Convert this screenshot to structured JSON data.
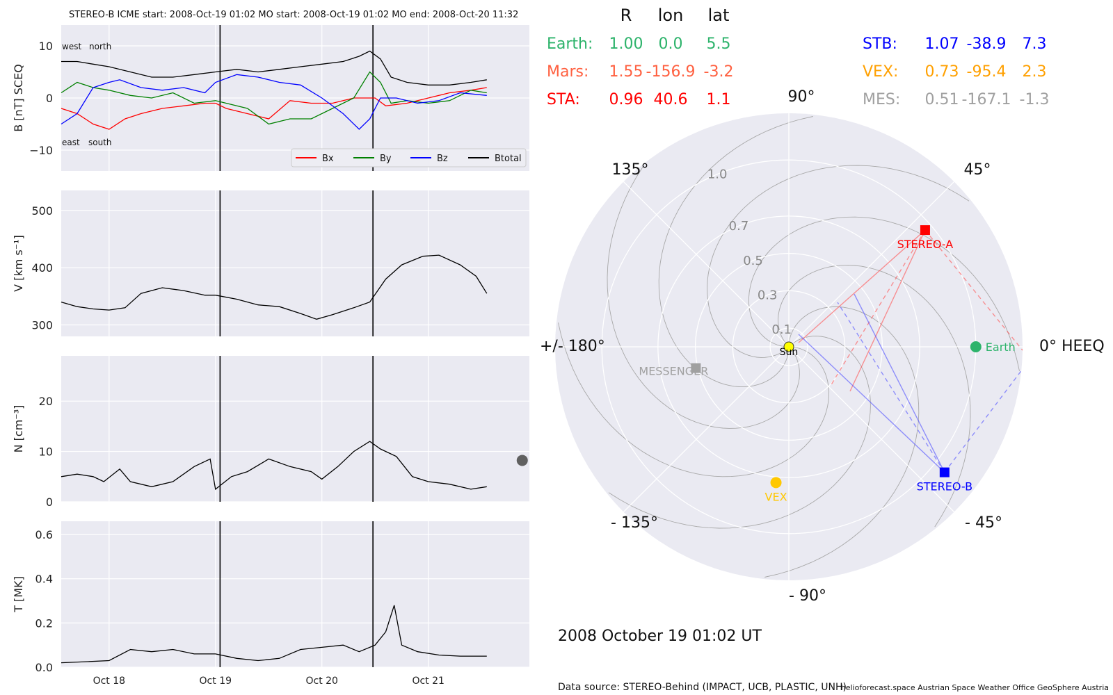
{
  "chart_data": [
    {
      "type": "line",
      "panel": "magnetic_field",
      "title": "STEREO-B    ICME start: 2008-Oct-19 01:02   MO start: 2008-Oct-19 01:02   MO end: 2008-Oct-20 11:32",
      "ylabel": "B [nT] SCEQ",
      "ylim": [
        -14,
        14
      ],
      "yticks": [
        {
          "v": -10,
          "label": "−10"
        },
        {
          "v": 0,
          "label": "0"
        },
        {
          "v": 10,
          "label": "10"
        }
      ],
      "annotations": [
        "west",
        "north",
        "east",
        "south"
      ],
      "series": [
        {
          "name": "Bx",
          "color": "#ff0000",
          "values": [
            [
              17.55,
              -2
            ],
            [
              17.7,
              -3
            ],
            [
              17.85,
              -5
            ],
            [
              18.0,
              -6
            ],
            [
              18.15,
              -4
            ],
            [
              18.3,
              -3
            ],
            [
              18.5,
              -2
            ],
            [
              18.7,
              -1.5
            ],
            [
              18.9,
              -1
            ],
            [
              19.0,
              -1
            ],
            [
              19.1,
              -2
            ],
            [
              19.3,
              -3
            ],
            [
              19.5,
              -4
            ],
            [
              19.7,
              -0.5
            ],
            [
              19.9,
              -1
            ],
            [
              20.1,
              -1
            ],
            [
              20.3,
              0
            ],
            [
              20.5,
              0
            ],
            [
              20.6,
              -1.5
            ],
            [
              20.8,
              -1
            ],
            [
              21.0,
              0
            ],
            [
              21.2,
              1
            ],
            [
              21.4,
              1.5
            ],
            [
              21.55,
              2
            ]
          ]
        },
        {
          "name": "By",
          "color": "#008000",
          "values": [
            [
              17.55,
              1
            ],
            [
              17.7,
              3
            ],
            [
              17.85,
              2
            ],
            [
              18.0,
              1.5
            ],
            [
              18.2,
              0.5
            ],
            [
              18.4,
              0
            ],
            [
              18.6,
              1
            ],
            [
              18.8,
              -1
            ],
            [
              19.0,
              -0.5
            ],
            [
              19.1,
              -1
            ],
            [
              19.3,
              -2
            ],
            [
              19.5,
              -5
            ],
            [
              19.7,
              -4
            ],
            [
              19.9,
              -4
            ],
            [
              20.1,
              -2
            ],
            [
              20.3,
              0
            ],
            [
              20.45,
              5
            ],
            [
              20.55,
              3
            ],
            [
              20.65,
              -1
            ],
            [
              20.8,
              -0.5
            ],
            [
              21.0,
              -1
            ],
            [
              21.2,
              -0.5
            ],
            [
              21.4,
              1.5
            ],
            [
              21.55,
              1
            ]
          ]
        },
        {
          "name": "Bz",
          "color": "#0000ff",
          "values": [
            [
              17.55,
              -5
            ],
            [
              17.7,
              -3
            ],
            [
              17.85,
              2
            ],
            [
              18.0,
              3
            ],
            [
              18.1,
              3.5
            ],
            [
              18.3,
              2
            ],
            [
              18.5,
              1.5
            ],
            [
              18.7,
              2
            ],
            [
              18.9,
              1
            ],
            [
              19.0,
              3
            ],
            [
              19.2,
              4.5
            ],
            [
              19.4,
              4
            ],
            [
              19.6,
              3
            ],
            [
              19.8,
              2.5
            ],
            [
              20.0,
              0
            ],
            [
              20.2,
              -3
            ],
            [
              20.35,
              -6
            ],
            [
              20.45,
              -4
            ],
            [
              20.55,
              0
            ],
            [
              20.7,
              0
            ],
            [
              20.9,
              -1
            ],
            [
              21.1,
              -0.5
            ],
            [
              21.3,
              1
            ],
            [
              21.55,
              0.5
            ]
          ]
        },
        {
          "name": "Btotal",
          "color": "#000000",
          "values": [
            [
              17.55,
              7
            ],
            [
              17.7,
              7
            ],
            [
              17.85,
              6.5
            ],
            [
              18.0,
              6
            ],
            [
              18.2,
              5
            ],
            [
              18.4,
              4
            ],
            [
              18.6,
              4
            ],
            [
              18.8,
              4.5
            ],
            [
              19.0,
              5
            ],
            [
              19.2,
              5.5
            ],
            [
              19.4,
              5
            ],
            [
              19.6,
              5.5
            ],
            [
              19.8,
              6
            ],
            [
              20.0,
              6.5
            ],
            [
              20.2,
              7
            ],
            [
              20.35,
              8
            ],
            [
              20.45,
              9
            ],
            [
              20.55,
              7.5
            ],
            [
              20.65,
              4
            ],
            [
              20.8,
              3
            ],
            [
              21.0,
              2.5
            ],
            [
              21.2,
              2.5
            ],
            [
              21.4,
              3
            ],
            [
              21.55,
              3.5
            ]
          ]
        }
      ]
    },
    {
      "type": "line",
      "panel": "speed",
      "ylabel": "V [km s⁻¹]",
      "ylim": [
        280,
        535
      ],
      "yticks": [
        {
          "v": 300,
          "label": "300"
        },
        {
          "v": 400,
          "label": "400"
        },
        {
          "v": 500,
          "label": "500"
        }
      ],
      "series": [
        {
          "name": "",
          "color": "#000000",
          "values": [
            [
              17.55,
              340
            ],
            [
              17.7,
              332
            ],
            [
              17.85,
              328
            ],
            [
              18.0,
              326
            ],
            [
              18.15,
              330
            ],
            [
              18.3,
              355
            ],
            [
              18.5,
              365
            ],
            [
              18.7,
              360
            ],
            [
              18.9,
              352
            ],
            [
              19.0,
              352
            ],
            [
              19.2,
              345
            ],
            [
              19.4,
              335
            ],
            [
              19.6,
              332
            ],
            [
              19.8,
              320
            ],
            [
              19.95,
              310
            ],
            [
              20.1,
              318
            ],
            [
              20.3,
              330
            ],
            [
              20.45,
              340
            ],
            [
              20.6,
              380
            ],
            [
              20.75,
              405
            ],
            [
              20.95,
              420
            ],
            [
              21.1,
              422
            ],
            [
              21.3,
              405
            ],
            [
              21.45,
              385
            ],
            [
              21.55,
              355
            ]
          ]
        }
      ]
    },
    {
      "type": "line",
      "panel": "density",
      "ylabel": "N [cm⁻³]",
      "ylim": [
        0,
        29
      ],
      "yticks": [
        {
          "v": 0,
          "label": "0"
        },
        {
          "v": 10,
          "label": "10"
        },
        {
          "v": 20,
          "label": "20"
        }
      ],
      "series": [
        {
          "name": "",
          "color": "#000000",
          "values": [
            [
              17.55,
              5
            ],
            [
              17.7,
              5.5
            ],
            [
              17.85,
              5
            ],
            [
              17.95,
              4
            ],
            [
              18.1,
              6.5
            ],
            [
              18.2,
              4
            ],
            [
              18.4,
              3
            ],
            [
              18.6,
              4
            ],
            [
              18.8,
              7
            ],
            [
              18.95,
              8.5
            ],
            [
              19.0,
              2.5
            ],
            [
              19.15,
              5
            ],
            [
              19.3,
              6
            ],
            [
              19.5,
              8.5
            ],
            [
              19.7,
              7
            ],
            [
              19.9,
              6
            ],
            [
              20.0,
              4.5
            ],
            [
              20.15,
              7
            ],
            [
              20.3,
              10
            ],
            [
              20.45,
              12
            ],
            [
              20.55,
              10.5
            ],
            [
              20.7,
              9
            ],
            [
              20.85,
              5
            ],
            [
              21.0,
              4
            ],
            [
              21.2,
              3.5
            ],
            [
              21.4,
              2.5
            ],
            [
              21.55,
              3
            ]
          ]
        }
      ]
    },
    {
      "type": "line",
      "panel": "temperature",
      "ylabel": "T [MK]",
      "ylim": [
        0,
        0.66
      ],
      "yticks": [
        {
          "v": 0,
          "label": "0.0"
        },
        {
          "v": 0.2,
          "label": "0.2"
        },
        {
          "v": 0.4,
          "label": "0.4"
        },
        {
          "v": 0.6,
          "label": "0.6"
        }
      ],
      "x_tick_labels": [
        "Oct 18",
        "Oct 19",
        "Oct 20",
        "Oct 21"
      ],
      "series": [
        {
          "name": "",
          "color": "#000000",
          "values": [
            [
              17.55,
              0.02
            ],
            [
              17.8,
              0.025
            ],
            [
              18.0,
              0.03
            ],
            [
              18.2,
              0.08
            ],
            [
              18.4,
              0.07
            ],
            [
              18.6,
              0.08
            ],
            [
              18.8,
              0.06
            ],
            [
              19.0,
              0.06
            ],
            [
              19.2,
              0.04
            ],
            [
              19.4,
              0.03
            ],
            [
              19.6,
              0.04
            ],
            [
              19.8,
              0.08
            ],
            [
              20.0,
              0.09
            ],
            [
              20.2,
              0.1
            ],
            [
              20.35,
              0.07
            ],
            [
              20.5,
              0.1
            ],
            [
              20.6,
              0.16
            ],
            [
              20.68,
              0.28
            ],
            [
              20.75,
              0.1
            ],
            [
              20.9,
              0.07
            ],
            [
              21.1,
              0.055
            ],
            [
              21.3,
              0.05
            ],
            [
              21.55,
              0.05
            ]
          ]
        }
      ]
    },
    {
      "type": "scatter",
      "panel": "polar_position",
      "timestamp": "2008 October 19  01:02 UT",
      "header": {
        "r": "R",
        "lon": "lon",
        "lat": "lat"
      },
      "rows": [
        {
          "name": "Earth:",
          "r": "1.00",
          "lon": "0.0",
          "lat": "5.5",
          "color": "#2db36b"
        },
        {
          "name": "Mars:",
          "r": "1.55",
          "lon": "-156.9",
          "lat": "-3.2",
          "color": "#ff6040"
        },
        {
          "name": "STA:",
          "r": "0.96",
          "lon": "40.6",
          "lat": "1.1",
          "color": "#ff0000"
        },
        {
          "name": "STB:",
          "r": "1.07",
          "lon": "-38.9",
          "lat": "7.3",
          "color": "#0000ff"
        },
        {
          "name": "VEX:",
          "r": "0.73",
          "lon": "-95.4",
          "lat": "2.3",
          "color": "#ffa000"
        },
        {
          "name": "MES:",
          "r": "0.51",
          "lon": "-167.1",
          "lat": "-1.3",
          "color": "#a0a0a0"
        }
      ],
      "angle_labels": {
        "a90": "90°",
        "a45": "45°",
        "a135": "135°",
        "a180": "+/- 180°",
        "a0": "0° HEEQ",
        "am45": "- 45°",
        "am135": "- 135°",
        "am90": "- 90°"
      },
      "r_labels": [
        "0.1",
        "0.3",
        "0.5",
        "0.7",
        "1.0"
      ],
      "bodies": [
        {
          "label": "Sun",
          "r": 0.0,
          "lon": 0,
          "color": "#ffff00",
          "marker": "circle"
        },
        {
          "label": "Earth",
          "r": 1.0,
          "lon": 0.0,
          "color": "#2db36b",
          "marker": "circle"
        },
        {
          "label": "STEREO-A",
          "r": 0.96,
          "lon": 40.6,
          "color": "#ff0000",
          "marker": "square"
        },
        {
          "label": "STEREO-B",
          "r": 1.07,
          "lon": -38.9,
          "color": "#0000ff",
          "marker": "square"
        },
        {
          "label": "VEX",
          "r": 0.73,
          "lon": -95.4,
          "color": "#ffc800",
          "marker": "circle"
        },
        {
          "label": "MESSENGER",
          "r": 0.51,
          "lon": -167.1,
          "color": "#a0a0a0",
          "marker": "square"
        },
        {
          "label": "",
          "r": 1.55,
          "lon": -156.9,
          "color": "#606060",
          "marker": "circle"
        }
      ]
    }
  ],
  "footer": {
    "source": "Data source: STEREO-Behind (IMPACT, UCB, PLASTIC, UNH)",
    "credits": "helioforecast.space   Austrian Space Weather Office   GeoSphere Austria"
  }
}
